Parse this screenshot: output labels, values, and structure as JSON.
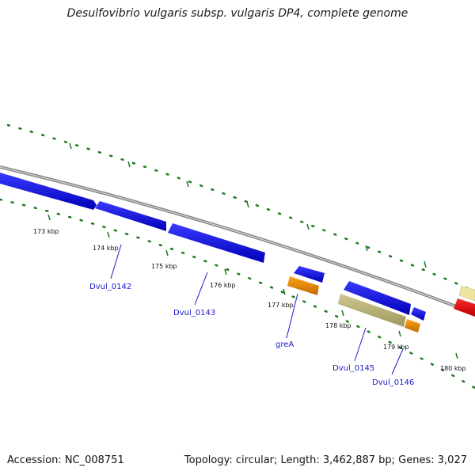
{
  "title": "Desulfovibrio vulgaris subsp. vulgaris DP4, complete genome",
  "footer": {
    "accession": "Accession: NC_008751",
    "summary": "Topology: circular; Length: 3,462,887 bp; Genes: 3,027"
  },
  "colors": {
    "backbone": "#8a8a8a",
    "cds": "#0a0ae6",
    "rna": "#f08c00",
    "pseudo": "#bdb57a",
    "gene_red": "#e60000",
    "gene_yellow": "#efe3a0",
    "tick": "#1e7a1e",
    "label": "#1a1acc"
  },
  "ticks": [
    {
      "label": "173 kbp"
    },
    {
      "label": "174 kbp"
    },
    {
      "label": "175 kbp"
    },
    {
      "label": "176 kbp"
    },
    {
      "label": "177 kbp"
    },
    {
      "label": "178 kbp"
    },
    {
      "label": "179 kbp"
    },
    {
      "label": "180 kbp"
    }
  ],
  "gene_labels": [
    {
      "name": "Dvul_0142"
    },
    {
      "name": "Dvul_0143"
    },
    {
      "name": "greA"
    },
    {
      "name": "Dvul_0145"
    },
    {
      "name": "Dvul_0146"
    }
  ]
}
